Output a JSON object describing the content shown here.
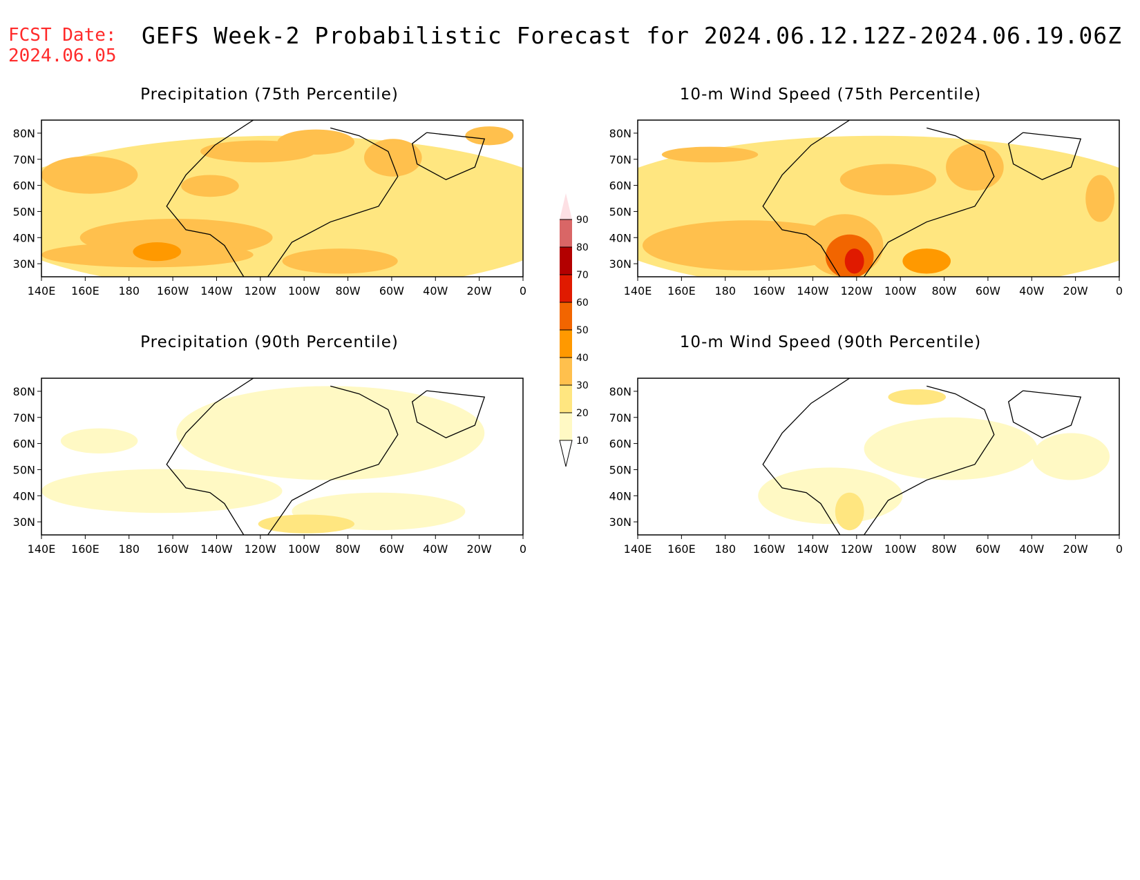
{
  "header": {
    "fcst_label": "FCST Date:",
    "fcst_date": "2024.06.05",
    "title": "GEFS Week-2 Probabilistic Forecast for 2024.06.12.12Z-2024.06.19.06Z"
  },
  "panels": [
    {
      "title": "Precipitation (75th Percentile)"
    },
    {
      "title": "10-m Wind Speed (75th Percentile)"
    },
    {
      "title": "Precipitation (90th Percentile)"
    },
    {
      "title": "10-m Wind Speed (90th Percentile)"
    }
  ],
  "axes": {
    "lon_labels": [
      "140E",
      "160E",
      "180",
      "160W",
      "140W",
      "120W",
      "100W",
      "80W",
      "60W",
      "40W",
      "20W",
      "0"
    ],
    "lat_labels": [
      "80N",
      "70N",
      "60N",
      "50N",
      "40N",
      "30N"
    ]
  },
  "colorbar": {
    "levels": [
      "10",
      "20",
      "30",
      "40",
      "50",
      "60",
      "70",
      "80",
      "90"
    ],
    "colors": [
      "#fff9c4",
      "#ffe680",
      "#ffc04d",
      "#ff9900",
      "#f26500",
      "#e01a00",
      "#b30000",
      "#d96666",
      "#f0a0a8",
      "#fde0e4"
    ]
  }
}
